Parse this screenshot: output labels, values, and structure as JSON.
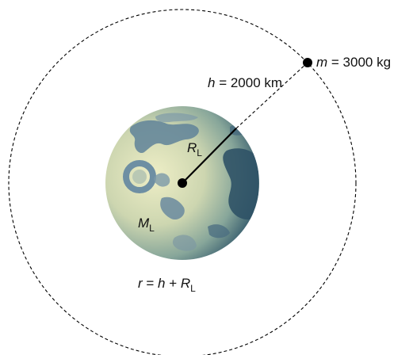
{
  "satellite": {
    "symbol": "m",
    "equals": " = ",
    "value": "3000 kg"
  },
  "altitude": {
    "symbol": "h",
    "equals": " = ",
    "value": "2000 km"
  },
  "moon_radius": {
    "symbol": "R",
    "subscript": "L"
  },
  "moon_mass": {
    "symbol": "M",
    "subscript": "L"
  },
  "orbit_radius": {
    "lhs": "r",
    "eq": " = ",
    "h": "h",
    "plus": " + ",
    "R": "R",
    "subscript": "L"
  },
  "colors": {
    "moon_light": "#e9e9bf",
    "moon_mid": "#9fb5a4",
    "moon_dark": "#2f5266",
    "crater": "#6e8fa3",
    "crater_dark": "#3b5f78",
    "line": "#000000"
  }
}
